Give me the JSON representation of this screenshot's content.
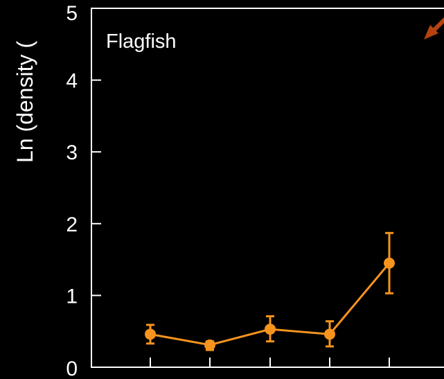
{
  "chart_data": {
    "type": "line",
    "ylabel": "Ln (density (",
    "panel_label": "Flagfish",
    "ylim": [
      0,
      5
    ],
    "yticks": [
      0,
      1,
      2,
      3,
      4,
      5
    ],
    "y_tick_labels": [
      "0",
      "1",
      "2",
      "3",
      "4",
      "5"
    ],
    "grid": false,
    "series": [
      {
        "values": [
          0.46,
          0.31,
          0.53,
          0.46,
          1.45
        ],
        "error_low": [
          0.33,
          0.24,
          0.36,
          0.29,
          1.03
        ],
        "error_high": [
          0.59,
          0.36,
          0.71,
          0.64,
          1.87
        ]
      }
    ]
  },
  "colors": {
    "background": "#000000",
    "axis": "#ffffff",
    "series": "#f7941d",
    "arrow": "#b5420f"
  }
}
